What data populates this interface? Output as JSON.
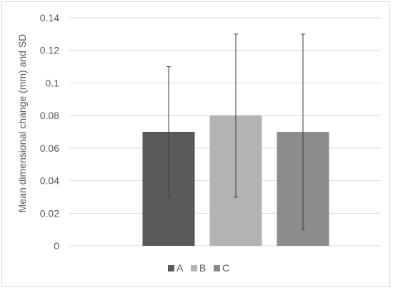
{
  "chart_data": {
    "type": "bar",
    "title": "",
    "xlabel": "",
    "ylabel": "Mean dimensional change (mm) and SD",
    "categories": [
      ""
    ],
    "series": [
      {
        "name": "A",
        "values": [
          0.07
        ],
        "error_low": [
          0.03
        ],
        "error_high": [
          0.11
        ],
        "color": "#595959"
      },
      {
        "name": "B",
        "values": [
          0.08
        ],
        "error_low": [
          0.03
        ],
        "error_high": [
          0.13
        ],
        "color": "#b3b3b3"
      },
      {
        "name": "C",
        "values": [
          0.07
        ],
        "error_low": [
          0.01
        ],
        "error_high": [
          0.13
        ],
        "color": "#8c8c8c"
      }
    ],
    "ylim": [
      0,
      0.14
    ],
    "yticks": [
      "0",
      "0.02",
      "0.04",
      "0.06",
      "0.08",
      "0.1",
      "0.12",
      "0.14"
    ],
    "grid": true,
    "legend_position": "bottom"
  }
}
